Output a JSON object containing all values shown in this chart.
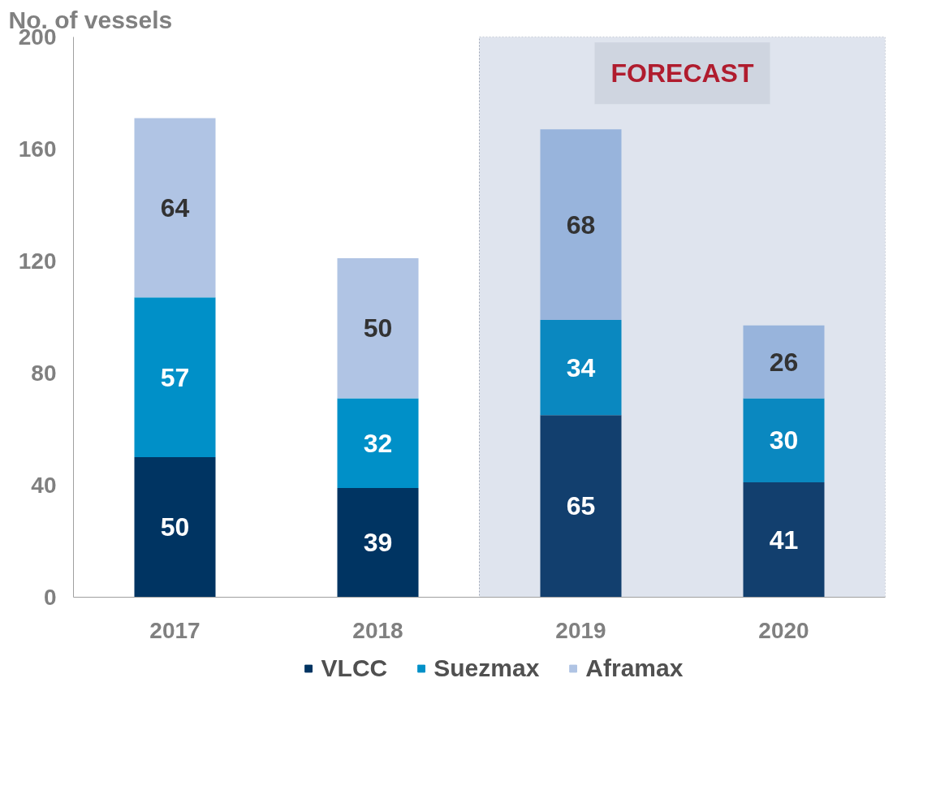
{
  "chart_data": {
    "type": "bar",
    "stacked": true,
    "ylabel": "No. of vessels",
    "categories": [
      "2017",
      "2018",
      "2019",
      "2020"
    ],
    "series": [
      {
        "name": "VLCC",
        "color": "#003462",
        "colors": [
          "#003462",
          "#003462",
          "#123f6e",
          "#123f6e"
        ],
        "values": [
          50,
          39,
          65,
          41
        ]
      },
      {
        "name": "Suezmax",
        "color": "#0090c8",
        "colors": [
          "#0090c8",
          "#0090c8",
          "#0a88c0",
          "#0a88c0"
        ],
        "values": [
          57,
          32,
          34,
          30
        ]
      },
      {
        "name": "Aframax",
        "color": "#b0c4e4",
        "colors": [
          "#b0c4e4",
          "#b0c4e4",
          "#98b4dc",
          "#98b4dc"
        ],
        "values": [
          64,
          50,
          68,
          26
        ]
      }
    ],
    "ylim": [
      0,
      200
    ],
    "yticks": [
      0,
      40,
      80,
      120,
      160,
      200
    ],
    "bands": [
      {
        "axis": "x",
        "from": "2019",
        "to": "2020",
        "label": "FORECAST",
        "color": "#dfe4ee"
      }
    ],
    "data_labels": true,
    "legend": "bottom",
    "grid": false
  }
}
